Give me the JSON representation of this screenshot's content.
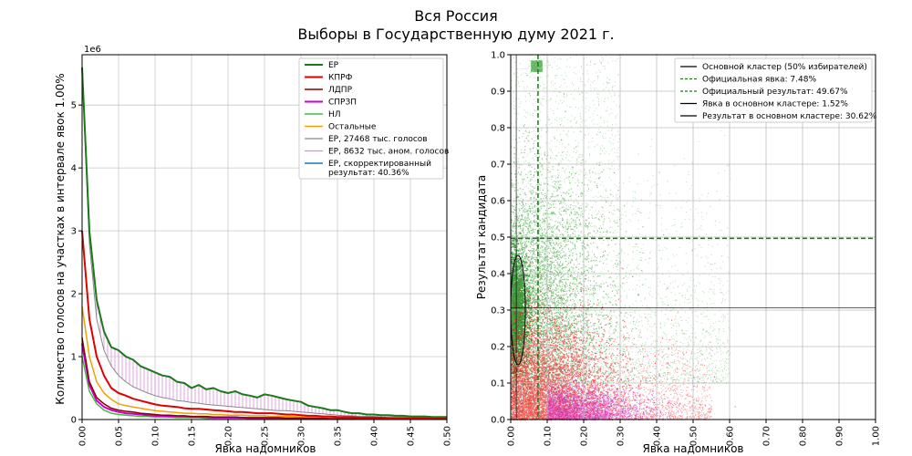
{
  "suptitle": [
    "Вся Россия",
    "Выборы в Государственную думу 2021 г."
  ],
  "chart_data": [
    {
      "type": "line",
      "xlabel": "Явка надомников",
      "ylabel": "Количество голосов на участках в интервале явок 1.00%",
      "y_multiplier_label": "1e6",
      "xlim": [
        0,
        0.5
      ],
      "ylim": [
        0,
        5.8
      ],
      "xticks": [
        0.0,
        0.05,
        0.1,
        0.15,
        0.2,
        0.25,
        0.3,
        0.35,
        0.4,
        0.45,
        0.5
      ],
      "xtick_labels": [
        "0.00",
        "0.05",
        "0.10",
        "0.15",
        "0.20",
        "0.25",
        "0.30",
        "0.35",
        "0.40",
        "0.45",
        "0.50"
      ],
      "yticks": [
        0,
        1,
        2,
        3,
        4,
        5
      ],
      "ytick_labels": [
        "0",
        "1",
        "2",
        "3",
        "4",
        "5"
      ],
      "grid": true,
      "legend_position": "top-right",
      "x": [
        0.0,
        0.01,
        0.02,
        0.03,
        0.04,
        0.05,
        0.06,
        0.07,
        0.08,
        0.09,
        0.1,
        0.11,
        0.12,
        0.13,
        0.14,
        0.15,
        0.16,
        0.17,
        0.18,
        0.19,
        0.2,
        0.21,
        0.22,
        0.23,
        0.24,
        0.25,
        0.26,
        0.27,
        0.28,
        0.29,
        0.3,
        0.31,
        0.32,
        0.33,
        0.34,
        0.35,
        0.36,
        0.37,
        0.38,
        0.39,
        0.4,
        0.41,
        0.42,
        0.43,
        0.44,
        0.45,
        0.46,
        0.47,
        0.48,
        0.49,
        0.5
      ],
      "series": [
        {
          "name": "ЕР",
          "color": "#1a7a1a",
          "width": 2,
          "values": [
            5.6,
            3.0,
            1.9,
            1.4,
            1.15,
            1.1,
            1.0,
            0.95,
            0.85,
            0.8,
            0.75,
            0.7,
            0.68,
            0.6,
            0.58,
            0.5,
            0.55,
            0.48,
            0.5,
            0.45,
            0.42,
            0.45,
            0.4,
            0.38,
            0.35,
            0.4,
            0.38,
            0.35,
            0.32,
            0.3,
            0.28,
            0.22,
            0.2,
            0.18,
            0.15,
            0.15,
            0.12,
            0.1,
            0.1,
            0.08,
            0.08,
            0.07,
            0.07,
            0.06,
            0.06,
            0.05,
            0.05,
            0.05,
            0.04,
            0.04,
            0.04
          ]
        },
        {
          "name": "КПРФ",
          "color": "#e00000",
          "width": 2,
          "values": [
            3.0,
            1.6,
            1.0,
            0.7,
            0.5,
            0.42,
            0.38,
            0.33,
            0.3,
            0.27,
            0.24,
            0.22,
            0.21,
            0.2,
            0.18,
            0.17,
            0.17,
            0.16,
            0.15,
            0.14,
            0.13,
            0.12,
            0.12,
            0.11,
            0.1,
            0.1,
            0.1,
            0.09,
            0.08,
            0.08,
            0.07,
            0.06,
            0.06,
            0.05,
            0.05,
            0.04,
            0.04,
            0.04,
            0.03,
            0.03,
            0.03,
            0.03,
            0.02,
            0.02,
            0.02,
            0.02,
            0.02,
            0.02,
            0.02,
            0.02,
            0.02
          ]
        },
        {
          "name": "ЛДПР",
          "color": "#8b0000",
          "width": 1.5,
          "values": [
            1.3,
            0.6,
            0.35,
            0.25,
            0.18,
            0.15,
            0.13,
            0.12,
            0.1,
            0.09,
            0.08,
            0.07,
            0.07,
            0.06,
            0.06,
            0.05,
            0.05,
            0.05,
            0.04,
            0.04,
            0.04,
            0.04,
            0.03,
            0.03,
            0.03,
            0.03,
            0.03,
            0.03,
            0.02,
            0.02,
            0.02,
            0.02,
            0.02,
            0.02,
            0.01,
            0.01,
            0.01,
            0.01,
            0.01,
            0.01,
            0.01,
            0.01,
            0.01,
            0.01,
            0.01,
            0.01,
            0.01,
            0.01,
            0.01,
            0.01,
            0.01
          ]
        },
        {
          "name": "СПРЗП",
          "color": "#cc00cc",
          "width": 2,
          "values": [
            1.2,
            0.55,
            0.3,
            0.2,
            0.15,
            0.12,
            0.1,
            0.09,
            0.08,
            0.07,
            0.06,
            0.06,
            0.05,
            0.05,
            0.05,
            0.04,
            0.04,
            0.04,
            0.03,
            0.03,
            0.03,
            0.03,
            0.03,
            0.02,
            0.02,
            0.02,
            0.02,
            0.02,
            0.02,
            0.02,
            0.02,
            0.01,
            0.01,
            0.01,
            0.01,
            0.01,
            0.01,
            0.01,
            0.01,
            0.01,
            0.01,
            0.01,
            0.01,
            0.01,
            0.01,
            0.01,
            0.01,
            0.01,
            0.01,
            0.01,
            0.01
          ]
        },
        {
          "name": "НЛ",
          "color": "#44bb44",
          "width": 1.5,
          "values": [
            1.0,
            0.45,
            0.25,
            0.15,
            0.1,
            0.08,
            0.07,
            0.06,
            0.05,
            0.05,
            0.04,
            0.04,
            0.04,
            0.03,
            0.03,
            0.03,
            0.03,
            0.02,
            0.02,
            0.02,
            0.02,
            0.02,
            0.02,
            0.02,
            0.01,
            0.01,
            0.01,
            0.01,
            0.01,
            0.01,
            0.01,
            0.01,
            0.01,
            0.01,
            0.01,
            0.01,
            0.01,
            0.01,
            0.01,
            0.01,
            0.01,
            0.01,
            0.01,
            0.01,
            0.01,
            0.01,
            0.01,
            0.01,
            0.01,
            0.01,
            0.01
          ]
        },
        {
          "name": "Остальные",
          "color": "#f0a000",
          "width": 1.5,
          "values": [
            1.8,
            1.0,
            0.6,
            0.42,
            0.32,
            0.25,
            0.22,
            0.2,
            0.18,
            0.16,
            0.14,
            0.13,
            0.12,
            0.11,
            0.1,
            0.1,
            0.09,
            0.09,
            0.08,
            0.08,
            0.07,
            0.07,
            0.07,
            0.06,
            0.06,
            0.06,
            0.05,
            0.05,
            0.05,
            0.05,
            0.04,
            0.04,
            0.04,
            0.03,
            0.03,
            0.03,
            0.03,
            0.03,
            0.02,
            0.02,
            0.02,
            0.02,
            0.02,
            0.02,
            0.02,
            0.02,
            0.02,
            0.02,
            0.02,
            0.02,
            0.02
          ]
        },
        {
          "name": "ЕР, 27468 тыс. голосов",
          "color": "#888888",
          "width": 1,
          "values": [
            5.6,
            2.8,
            1.6,
            1.1,
            0.85,
            0.7,
            0.6,
            0.52,
            0.47,
            0.42,
            0.38,
            0.35,
            0.33,
            0.3,
            0.29,
            0.27,
            0.26,
            0.24,
            0.23,
            0.22,
            0.21,
            0.2,
            0.19,
            0.18,
            0.17,
            0.16,
            0.15,
            0.14,
            0.14,
            0.13,
            0.12,
            0.11,
            0.1,
            0.09,
            0.08,
            0.07,
            0.06,
            0.06,
            0.05,
            0.05,
            0.05,
            0.04,
            0.04,
            0.04,
            0.04,
            0.04,
            0.03,
            0.03,
            0.03,
            0.03,
            0.03
          ]
        },
        {
          "name": "ЕР, 8632 тыс. аном. голосов",
          "color": "#dd88dd",
          "width": 1,
          "style": "hatch"
        },
        {
          "name": "ЕР, скорректированный результат: 40.36%",
          "color": "#1f77b4",
          "width": 1.5
        }
      ]
    },
    {
      "type": "scatter",
      "xlabel": "Явка надомников",
      "ylabel": "Результат кандидата",
      "xlim": [
        0,
        1
      ],
      "ylim": [
        0,
        1
      ],
      "xticks": [
        0.0,
        0.1,
        0.2,
        0.3,
        0.4,
        0.5,
        0.6,
        0.7,
        0.8,
        0.9,
        1.0
      ],
      "xtick_labels": [
        "0.00",
        "0.10",
        "0.20",
        "0.30",
        "0.40",
        "0.50",
        "0.60",
        "0.70",
        "0.80",
        "0.90",
        "1.00"
      ],
      "yticks": [
        0,
        0.1,
        0.2,
        0.3,
        0.4,
        0.5,
        0.6,
        0.7,
        0.8,
        0.9,
        1.0
      ],
      "ytick_labels": [
        "0.0",
        "0.1",
        "0.2",
        "0.3",
        "0.4",
        "0.5",
        "0.6",
        "0.7",
        "0.8",
        "0.9",
        "1.0"
      ],
      "grid": true,
      "legend_position": "top-right",
      "official_turnout": 0.0748,
      "official_result": 0.4967,
      "cluster_turnout": 0.0152,
      "cluster_result": 0.3062,
      "cluster_ellipse": {
        "center": [
          0.02,
          0.3
        ],
        "half_width": 0.02,
        "half_height": 0.15
      },
      "legend": [
        {
          "label": "Основной кластер (50% избирателей)",
          "color": "#000000",
          "style": "solid"
        },
        {
          "label": "Официальная явка: 7.48%",
          "color": "#1a7a1a",
          "style": "dashed"
        },
        {
          "label": "Официальный результат: 49.67%",
          "color": "#1a7a1a",
          "style": "dashed"
        },
        {
          "label": "Явка в основном кластере: 1.52%",
          "color": "#000000",
          "style": "solid"
        },
        {
          "label": "Результат в основном кластере: 30.62%",
          "color": "#000000",
          "style": "solid"
        }
      ],
      "point_colors": {
        "ER": "#2a9a2a",
        "KPRF": "#ee1111",
        "SR": "#cc22cc"
      }
    }
  ]
}
